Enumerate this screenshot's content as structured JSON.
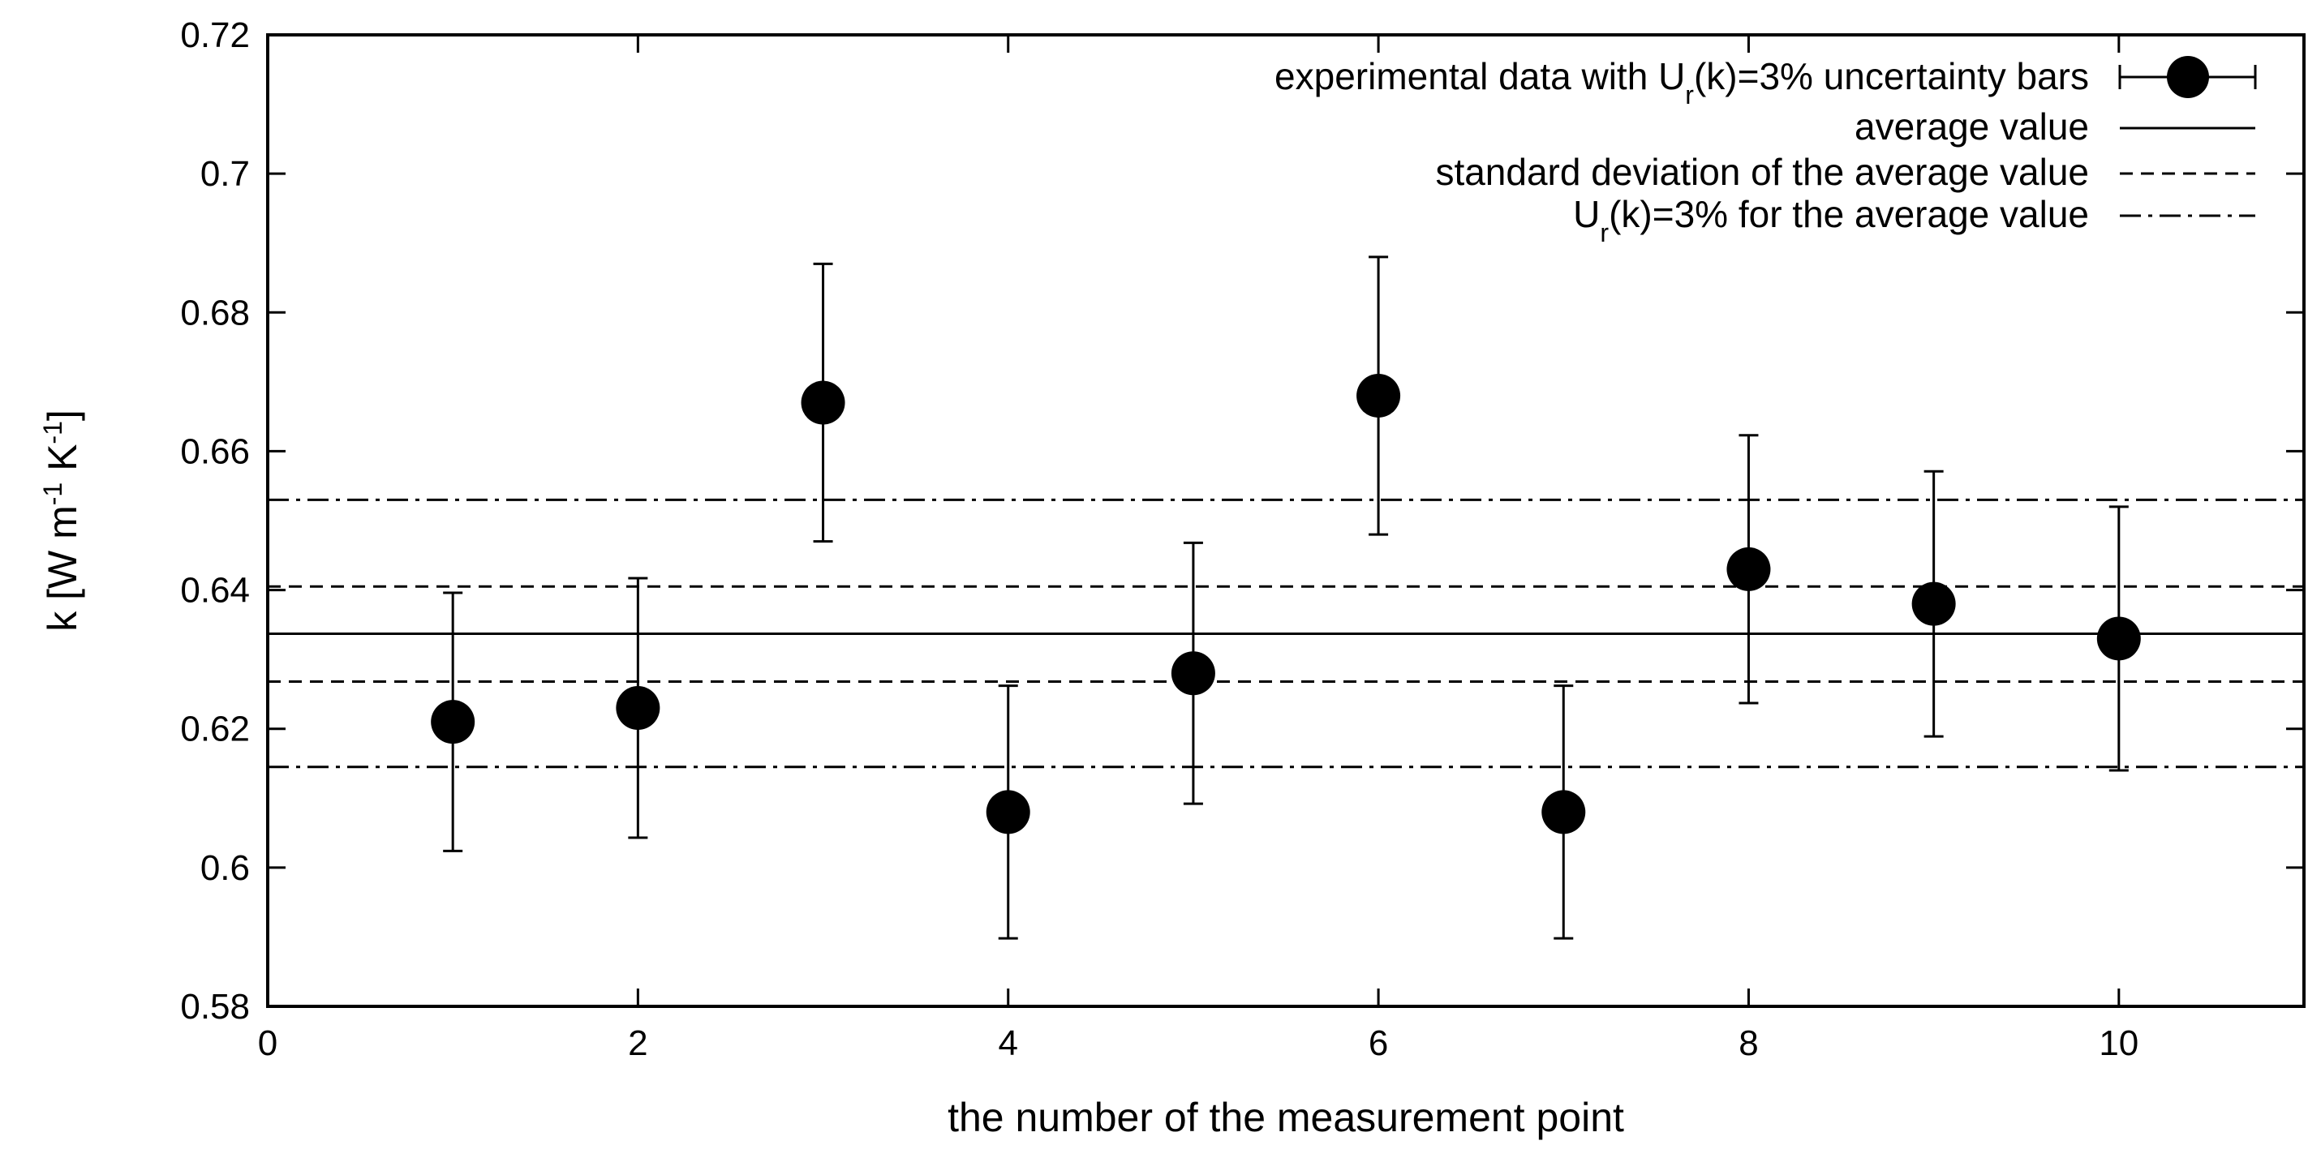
{
  "chart_data": {
    "type": "scatter",
    "xlabel": "the number of the measurement point",
    "ylabel": "k [W m",
    "ylabel_parts": [
      "k [W m",
      "-1",
      " K",
      "-1",
      "]"
    ],
    "xlim": [
      0,
      11
    ],
    "ylim": [
      0.58,
      0.72
    ],
    "xticks": [
      0,
      2,
      4,
      6,
      8,
      10
    ],
    "xtick_labels": [
      "0",
      "2",
      "4",
      "6",
      "8",
      "10"
    ],
    "yticks": [
      0.58,
      0.6,
      0.62,
      0.64,
      0.66,
      0.68,
      0.7,
      0.72
    ],
    "ytick_labels": [
      "0.58",
      "0.6",
      "0.62",
      "0.64",
      "0.66",
      "0.68",
      "0.7",
      "0.72"
    ],
    "grid": false,
    "legend_position": "top-right",
    "series": [
      {
        "name": "experimental data with U",
        "name_parts": [
          "experimental data with U",
          "r",
          "(k)=3% uncertainty bars"
        ],
        "style": "points-with-errorbars",
        "x": [
          1,
          2,
          3,
          4,
          5,
          6,
          7,
          8,
          9,
          10
        ],
        "y": [
          0.621,
          0.623,
          0.667,
          0.608,
          0.628,
          0.668,
          0.608,
          0.643,
          0.638,
          0.633
        ],
        "y_low": [
          0.6024,
          0.6043,
          0.647,
          0.5898,
          0.6092,
          0.648,
          0.5898,
          0.6237,
          0.6189,
          0.614
        ],
        "y_high": [
          0.6396,
          0.6417,
          0.687,
          0.6262,
          0.6468,
          0.688,
          0.6262,
          0.6623,
          0.6571,
          0.652
        ]
      },
      {
        "name": "average value",
        "style": "solid",
        "y": 0.6337
      },
      {
        "name": "standard deviation of the average value",
        "style": "dashed",
        "y": [
          0.6268,
          0.6405
        ]
      },
      {
        "name": "U",
        "name_parts": [
          "U",
          "r",
          "(k)=3% for the average value"
        ],
        "style": "dash-dot",
        "y": [
          0.6145,
          0.653
        ]
      }
    ]
  }
}
